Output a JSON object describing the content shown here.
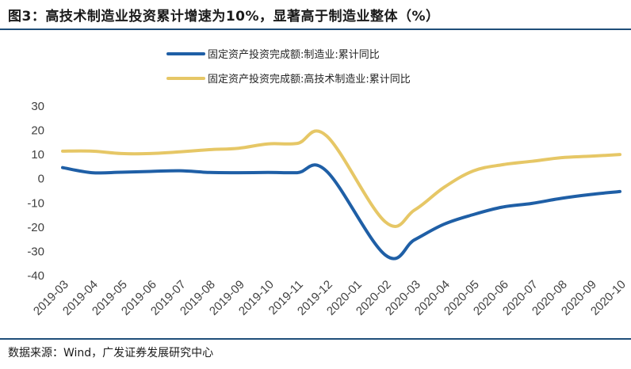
{
  "title": "图3：高技术制造业投资累计增速为10%，显著高于制造业整体（%）",
  "source": "数据来源：Wind，广发证券发展研究中心",
  "colors": {
    "series_manufacturing": "#1f5fa6",
    "series_hightech": "#e6c766",
    "rule": "#1f4e79"
  },
  "chart_data": {
    "type": "line",
    "title": "高技术制造业投资累计增速为10%，显著高于制造业整体（%）",
    "xlabel": "",
    "ylabel": "%",
    "ylim": [
      -40,
      30
    ],
    "yticks": [
      30,
      20,
      10,
      0,
      -10,
      -20,
      -30,
      -40
    ],
    "grid": false,
    "legend_position": "top",
    "categories": [
      "2019-03",
      "2019-04",
      "2019-05",
      "2019-06",
      "2019-07",
      "2019-08",
      "2019-09",
      "2019-10",
      "2019-11",
      "2019-12",
      "2020-01",
      "2020-02",
      "2020-03",
      "2020-04",
      "2020-05",
      "2020-06",
      "2020-07",
      "2020-08",
      "2020-09",
      "2020-10"
    ],
    "series": [
      {
        "name": "固定资产投资完成额:制造业:累计同比",
        "color": "#1f5fa6",
        "values": [
          4.6,
          2.5,
          2.7,
          3.0,
          3.3,
          2.6,
          2.5,
          2.6,
          2.5,
          3.1,
          null,
          -31.5,
          -25.2,
          -18.8,
          -14.8,
          -11.7,
          -10.2,
          -8.1,
          -6.5,
          -5.3
        ]
      },
      {
        "name": "固定资产投资完成额:高技术制造业:累计同比",
        "color": "#e6c766",
        "values": [
          11.4,
          11.4,
          10.4,
          10.4,
          11.1,
          12.0,
          12.6,
          14.4,
          14.6,
          17.7,
          null,
          -17.8,
          -12.9,
          -3.6,
          3.2,
          5.8,
          7.2,
          8.7,
          9.3,
          10.0
        ]
      }
    ]
  }
}
